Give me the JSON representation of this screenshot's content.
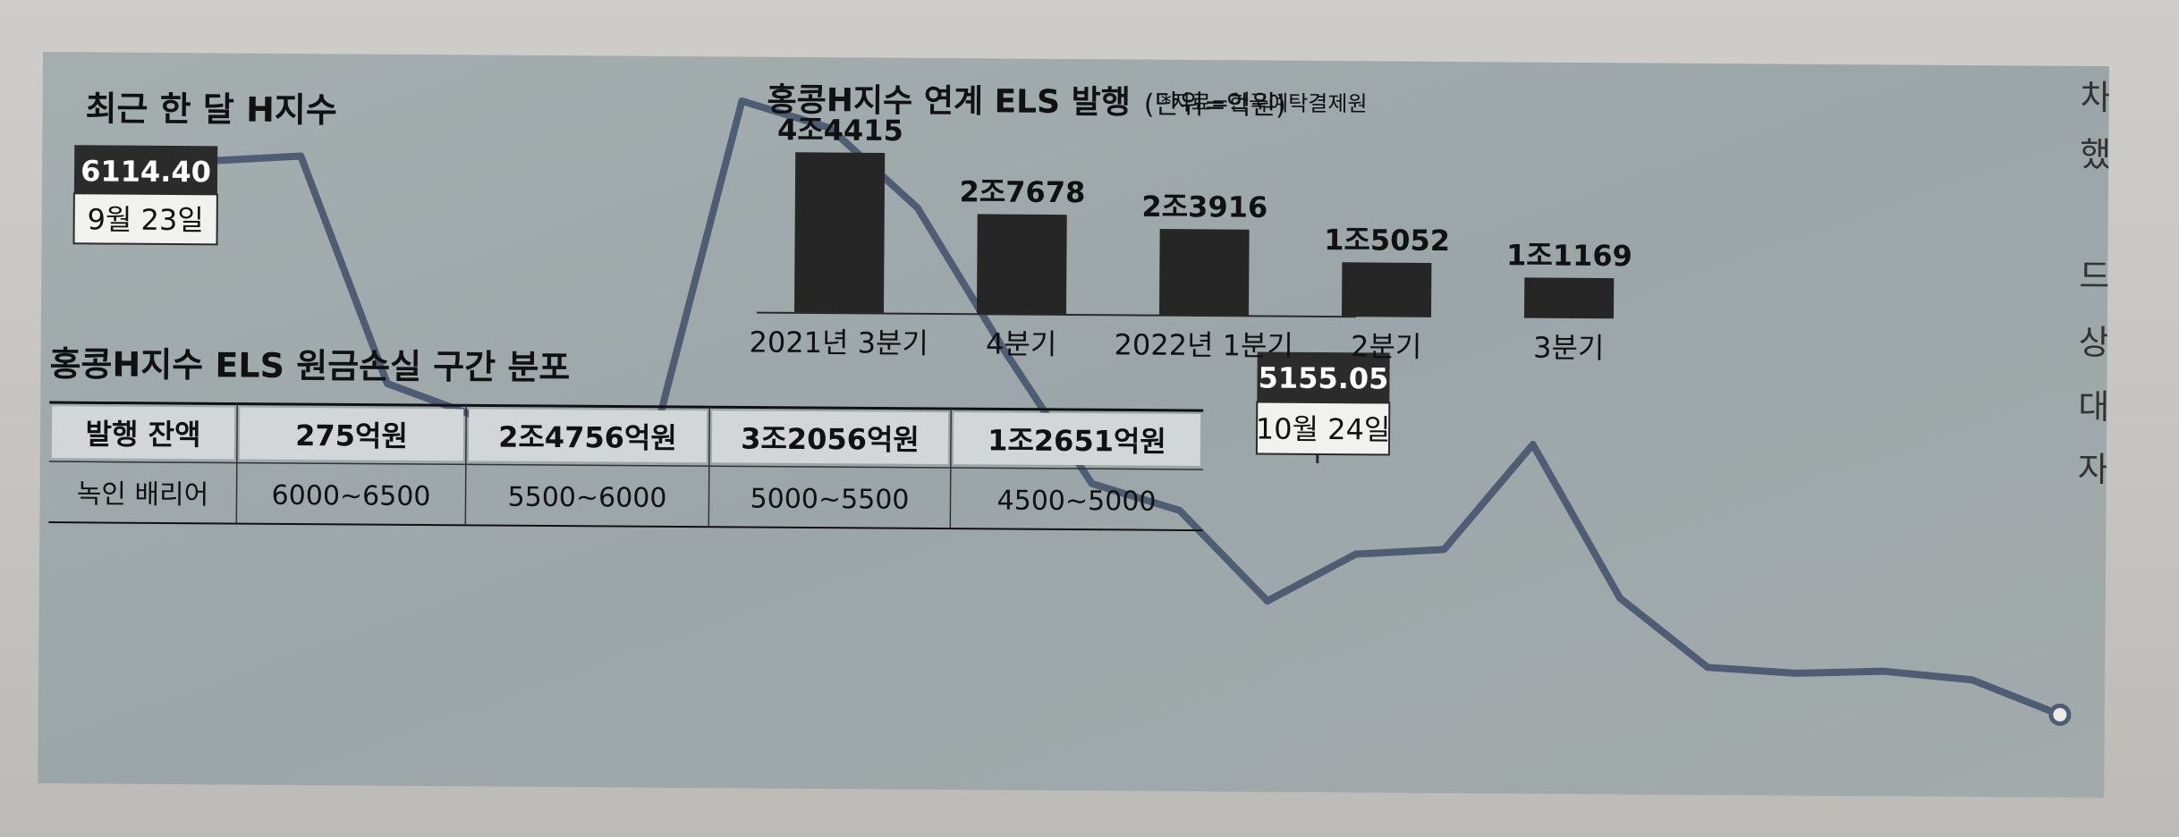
{
  "line_chart": {
    "title": "최근 한 달 H지수",
    "start": {
      "value": "6114.40",
      "date": "9월 23일"
    },
    "end": {
      "value": "5155.05",
      "date": "10월 24일"
    }
  },
  "bar_chart": {
    "title": "홍콩H지수 연계 ELS 발행",
    "unit": "(단위=억원)",
    "source": "*자료=한국예탁결제원",
    "value_labels": [
      "4조4415",
      "2조7678",
      "2조3916",
      "1조5052",
      "1조1169"
    ]
  },
  "table": {
    "title": "홍콩H지수 ELS 원금손실 구간 분포",
    "row_labels": [
      "발행 잔액",
      "녹인 배리어"
    ],
    "balances": [
      "275억원",
      "2조4756억원",
      "3조2056억원",
      "1조2651억원"
    ],
    "barriers": [
      "6000~6500",
      "5500~6000",
      "5000~5500",
      "4500~5000"
    ]
  },
  "edge_text": [
    "차",
    "했",
    "드",
    "상",
    "대",
    "자"
  ],
  "colors": {
    "line": "#4e5d74",
    "bar": "#262626",
    "panel": "#a1aaab",
    "callout": "#2b2b2b"
  },
  "chart_data": [
    {
      "type": "line",
      "title": "최근 한 달 H지수",
      "x": [
        "9월 23일",
        "",
        "",
        "",
        "",
        "",
        "",
        "",
        "",
        "",
        "",
        "",
        "",
        "",
        "",
        "",
        "",
        "",
        "",
        "",
        "",
        "",
        "10월 24일"
      ],
      "values": [
        6114.4,
        6180,
        6190,
        5760,
        5700,
        5700,
        5640,
        6300,
        6250,
        6100,
        5830,
        5580,
        5530,
        5360,
        5450,
        5460,
        5660,
        5370,
        5240,
        5230,
        5235,
        5220,
        5155.05
      ],
      "ylim": [
        5100,
        6350
      ],
      "xlabel": "",
      "ylabel": ""
    },
    {
      "type": "bar",
      "title": "홍콩H지수 연계 ELS 발행",
      "categories": [
        "2021년 3분기",
        "4분기",
        "2022년 1분기",
        "2분기",
        "3분기"
      ],
      "values": [
        44415,
        27678,
        23916,
        15052,
        11169
      ],
      "value_labels": [
        "4조4415",
        "2조7678",
        "2조3916",
        "1조5052",
        "1조1169"
      ],
      "unit": "억원",
      "ylim": [
        0,
        46000
      ]
    },
    {
      "type": "table",
      "title": "홍콩H지수 ELS 원금손실 구간 분포",
      "columns": [
        "발행 잔액",
        "275억원",
        "2조4756억원",
        "3조2056억원",
        "1조2651억원"
      ],
      "rows": [
        [
          "녹인 배리어",
          "6000~6500",
          "5500~6000",
          "5000~5500",
          "4500~5000"
        ]
      ]
    }
  ]
}
